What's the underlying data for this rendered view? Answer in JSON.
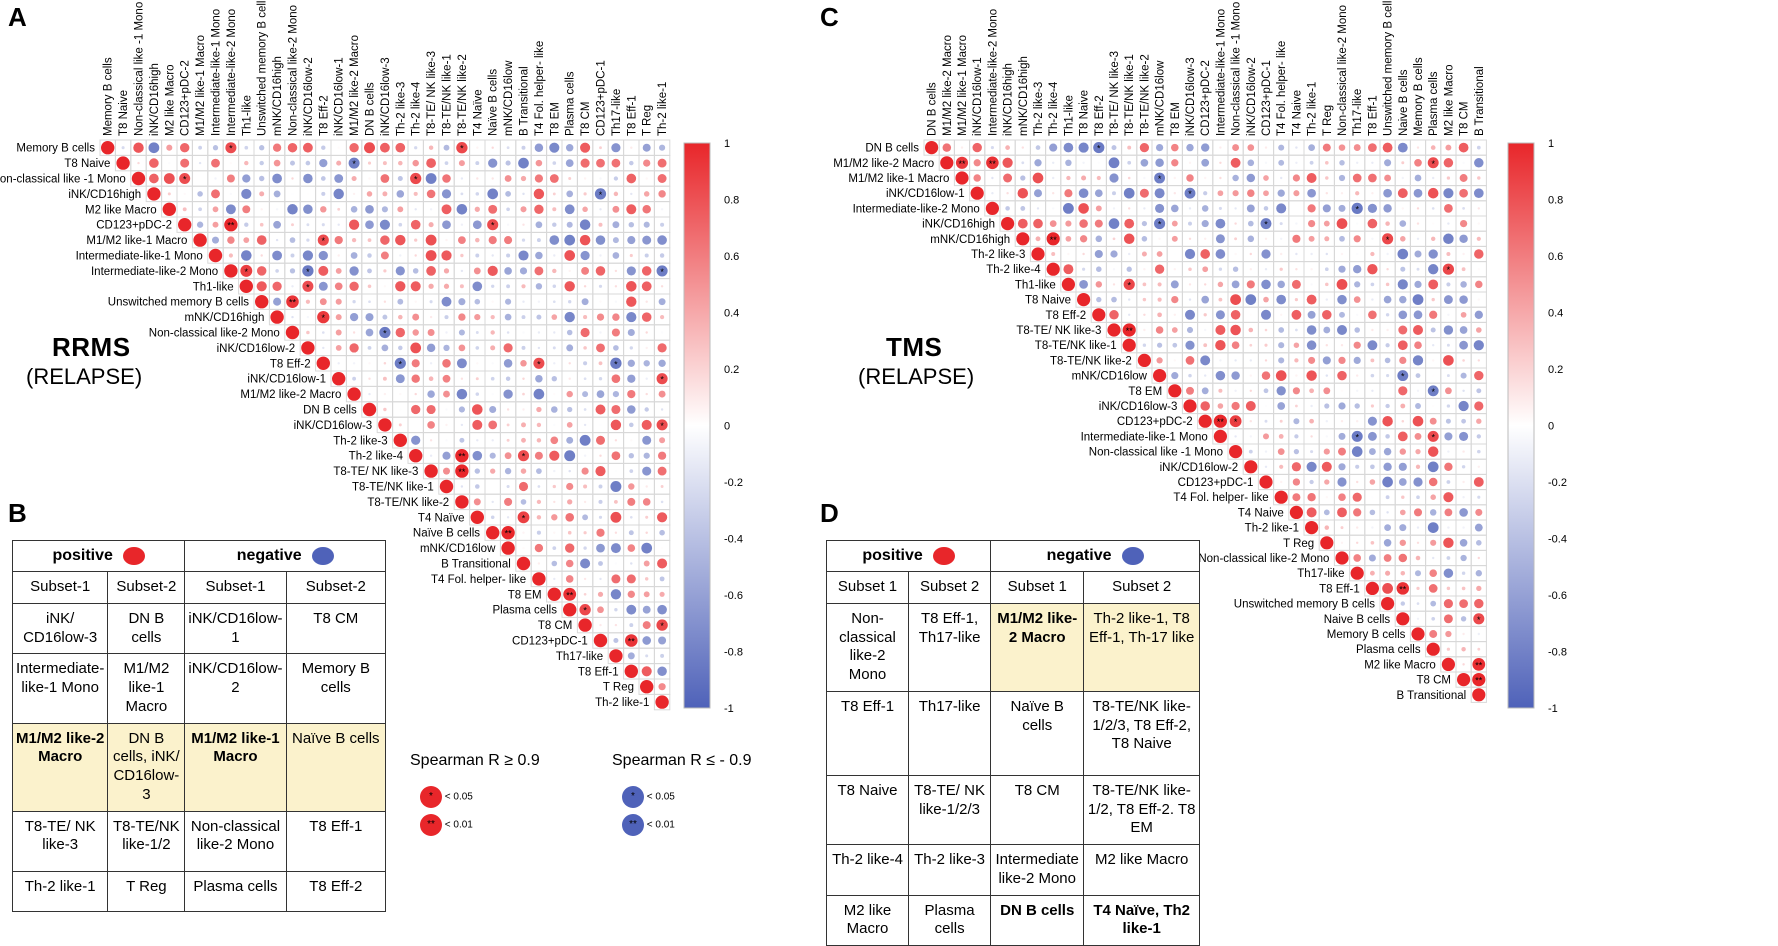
{
  "panels": {
    "A": "A",
    "B": "B",
    "C": "C",
    "D": "D"
  },
  "colors": {
    "positive": "#e8262a",
    "negative": "#4f62b9",
    "highlight": "#fbf2cc"
  },
  "colorbar_ticks": [
    "1",
    "0.8",
    "0.6",
    "0.4",
    "0.2",
    "0",
    "-0.2",
    "-0.4",
    "-0.6",
    "-0.8",
    "-1"
  ],
  "rrms": {
    "title": "RRMS",
    "subtitle": "(RELAPSE)",
    "labels": [
      "Memory B cells",
      "T8 Naive",
      "Non-classical like -1 Mono",
      "iNK/CD16high",
      "M2 like Macro",
      "CD123+pDC-2",
      "M1/M2 like-1 Macro",
      "Intermediate-like-1 Mono",
      "Intermediate-like-2 Mono",
      "Th1-like",
      "Unswitched memory B cells",
      "mNK/CD16high",
      "Non-classical like-2 Mono",
      "iNK/CD16low-2",
      "T8 Eff-2",
      "iNK/CD16low-1",
      "M1/M2 like-2 Macro",
      "DN B cells",
      "iNK/CD16low-3",
      "Th-2 like-3",
      "Th-2 like-4",
      "T8-TE/ NK like-3",
      "T8-TE/NK like-1",
      "T8-TE/NK like-2",
      "T4 Naïve",
      "Naïve B cells",
      "mNK/CD16low",
      "B Transitional",
      "T4 Fol. helper- like",
      "T8 EM",
      "Plasma cells",
      "T8 CM",
      "CD123+pDC-1",
      "Th17-like",
      "T8 Eff-1",
      "T Reg",
      "Th-2 like-1"
    ]
  },
  "tms": {
    "title": "TMS",
    "subtitle": "(RELAPSE)",
    "labels": [
      "DN B cells",
      "M1/M2 like-2 Macro",
      "M1/M2 like-1 Macro",
      "iNK/CD16low-1",
      "Intermediate-like-2 Mono",
      "iNK/CD16high",
      "mNK/CD16high",
      "Th-2 like-3",
      "Th-2 like-4",
      "Th1-like",
      "T8 Naive",
      "T8 Eff-2",
      "T8-TE/ NK like-3",
      "T8-TE/NK like-1",
      "T8-TE/NK like-2",
      "mNK/CD16low",
      "T8 EM",
      "iNK/CD16low-3",
      "CD123+pDC-2",
      "Intermediate-like-1 Mono",
      "Non-classical like -1 Mono",
      "iNK/CD16low-2",
      "CD123+pDC-1",
      "T4 Fol. helper- like",
      "T4 Naive",
      "Th-2 like-1",
      "T Reg",
      "Non-classical like-2 Mono",
      "Th17-like",
      "T8 Eff-1",
      "Unswitched memory B cells",
      "Naive B cells",
      "Memory B cells",
      "Plasma cells",
      "M2 like Macro",
      "T8 CM",
      "B Transitional"
    ]
  },
  "table_b": {
    "positive": "positive",
    "negative": "negative",
    "sub": [
      "Subset-1",
      "Subset-2",
      "Subset-1",
      "Subset-2"
    ],
    "rows": [
      [
        "iNK/ CD16low-3",
        "DN B cells",
        "iNK/CD16low-1",
        "T8 CM"
      ],
      [
        "Intermediate- like-1 Mono",
        "M1/M2 like-1 Macro",
        "iNK/CD16low-2",
        "Memory B cells"
      ],
      [
        "M1/M2 like-2 Macro",
        "DN B cells, iNK/ CD16low-3",
        "M1/M2 like-1 Macro",
        "Naïve B cells"
      ],
      [
        "T8-TE/ NK like-3",
        "T8-TE/NK like-1/2",
        "Non-classical like-2 Mono",
        "T8 Eff-1"
      ],
      [
        "Th-2 like-1",
        "T Reg",
        "Plasma cells",
        "T8 Eff-2"
      ]
    ]
  },
  "table_d": {
    "positive": "positive",
    "negative": "negative",
    "sub": [
      "Subset 1",
      "Subset 2",
      "Subset 1",
      "Subset 2"
    ],
    "rows": [
      [
        "Non-classical like-2 Mono",
        "T8 Eff-1, Th17-like",
        "M1/M2 like-2 Macro",
        "Th-2 like-1, T8 Eff-1, Th-17 like"
      ],
      [
        "T8 Eff-1",
        "Th17-like",
        "Naïve B cells",
        "T8-TE/NK like-1/2/3, T8 Eff-2, T8 Naive"
      ],
      [
        "T8 Naive",
        "T8-TE/ NK like-1/2/3",
        "T8 CM",
        "T8-TE/NK like-1/2, T8 Eff-2. T8 EM"
      ],
      [
        "Th-2 like-4",
        "Th-2 like-3",
        "Intermediate like-2 Mono",
        "M2 like Macro"
      ],
      [
        "M2 like Macro",
        "Plasma cells",
        "DN B cells",
        "T4 Naïve, Th2 like-1"
      ]
    ]
  },
  "legend": {
    "pos_title": "Spearman R ≥ 0.9",
    "neg_title": "Spearman R ≤ - 0.9",
    "p05": "< 0.05",
    "p01": "< 0.01",
    "one_star": "*",
    "two_star": "**"
  }
}
